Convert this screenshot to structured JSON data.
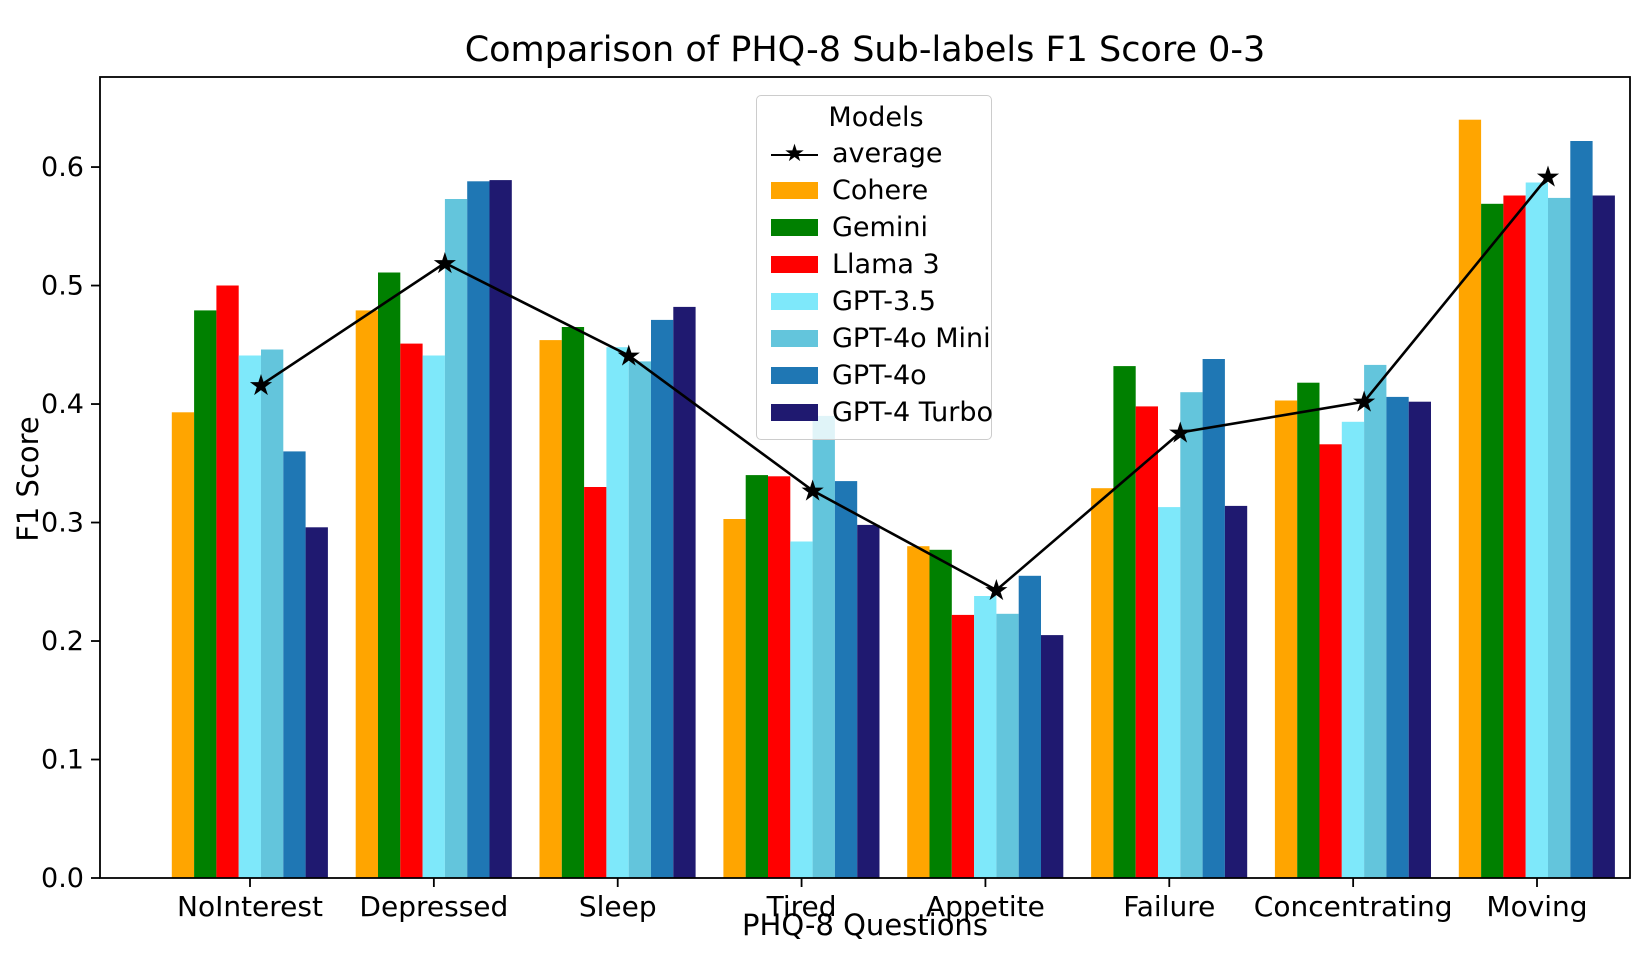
{
  "figure": {
    "title": "Comparison of PHQ-8 Sub-labels F1 Score 0-3",
    "xlabel": "PHQ-8 Questions",
    "ylabel": "F1 Score",
    "legend_title": "Models"
  },
  "chart_data": {
    "type": "bar",
    "title": "Comparison of PHQ-8 Sub-labels F1 Score 0-3",
    "xlabel": "PHQ-8 Questions",
    "ylabel": "F1 Score",
    "categories": [
      "NoInterest",
      "Depressed",
      "Sleep",
      "Tired",
      "Appetite",
      "Failure",
      "Concentrating",
      "Moving"
    ],
    "ylim": [
      0.0,
      0.676
    ],
    "yticks": [
      0.0,
      0.1,
      0.2,
      0.3,
      0.4,
      0.5,
      0.6
    ],
    "grid": false,
    "legend_title": "Models",
    "legend_position": "upper center inside",
    "axis_color": "#000000",
    "series": [
      {
        "name": "Cohere",
        "color": "#FFA500",
        "values": [
          0.393,
          0.479,
          0.454,
          0.303,
          0.28,
          0.329,
          0.403,
          0.64
        ]
      },
      {
        "name": "Gemini",
        "color": "#008000",
        "values": [
          0.479,
          0.511,
          0.465,
          0.34,
          0.277,
          0.432,
          0.418,
          0.569
        ]
      },
      {
        "name": "Llama 3",
        "color": "#FF0000",
        "values": [
          0.5,
          0.451,
          0.33,
          0.339,
          0.222,
          0.398,
          0.366,
          0.576
        ]
      },
      {
        "name": "GPT-3.5",
        "color": "#7EE8FA",
        "values": [
          0.441,
          0.441,
          0.448,
          0.284,
          0.238,
          0.313,
          0.385,
          0.587
        ]
      },
      {
        "name": "GPT-4o Mini",
        "color": "#63C5DC",
        "values": [
          0.446,
          0.573,
          0.436,
          0.39,
          0.223,
          0.41,
          0.433,
          0.574
        ]
      },
      {
        "name": "GPT-4o",
        "color": "#1F77B4",
        "values": [
          0.36,
          0.588,
          0.471,
          0.335,
          0.255,
          0.438,
          0.406,
          0.622
        ]
      },
      {
        "name": "GPT-4 Turbo",
        "color": "#1F1970",
        "values": [
          0.296,
          0.589,
          0.482,
          0.298,
          0.205,
          0.314,
          0.402,
          0.576
        ]
      }
    ],
    "line_series": {
      "name": "average",
      "color": "#000000",
      "marker": "star",
      "marker_glyph": "★",
      "values": [
        0.416,
        0.519,
        0.441,
        0.327,
        0.243,
        0.376,
        0.402,
        0.592
      ]
    }
  }
}
